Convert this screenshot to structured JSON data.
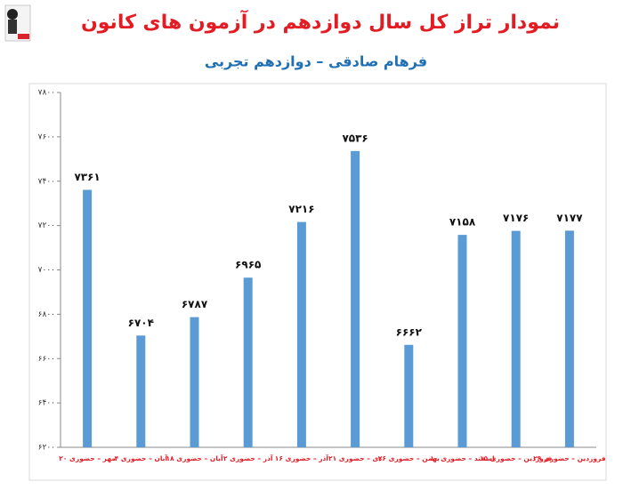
{
  "chart_data": {
    "type": "bar",
    "title": "نمودار تراز کل سال دوازدهم در آزمون های کانون",
    "subtitle": "فرهام صادقی – دوازدهم تجربی",
    "categories": [
      "۲۰ مهر – حضوری",
      "۴ آبان – حضوری",
      "۱۸ آبان – حضوری",
      "۲ آذر – حضوری",
      "۱۶ آذر – حضوری",
      "۲۱ دی – حضوری",
      "۲۶ بهمن – حضوری",
      "۱۰ اسفند – حضوری",
      "۱۵ فروردین – حضوری",
      "۲۹ فروردین – حضوری"
    ],
    "values": [
      7361,
      6704,
      6787,
      6965,
      7216,
      7536,
      6662,
      7158,
      7176,
      7177
    ],
    "value_labels": [
      "۷۳۶۱",
      "۶۷۰۴",
      "۶۷۸۷",
      "۶۹۶۵",
      "۷۲۱۶",
      "۷۵۳۶",
      "۶۶۶۲",
      "۷۱۵۸",
      "۷۱۷۶",
      "۷۱۷۷"
    ],
    "color": "#5b9bd5",
    "ylim": [
      6200,
      7800
    ],
    "yticks": [
      {
        "value": 6200,
        "label": "۶۲۰۰"
      },
      {
        "value": 6400,
        "label": "۶۴۰۰"
      },
      {
        "value": 6600,
        "label": "۶۶۰۰"
      },
      {
        "value": 6800,
        "label": "۶۸۰۰"
      },
      {
        "value": 7000,
        "label": "۷۰۰۰"
      },
      {
        "value": 7200,
        "label": "۷۲۰۰"
      },
      {
        "value": 7400,
        "label": "۷۴۰۰"
      },
      {
        "value": 7600,
        "label": "۷۶۰۰"
      },
      {
        "value": 7800,
        "label": "۷۸۰۰"
      }
    ],
    "grid": false
  }
}
